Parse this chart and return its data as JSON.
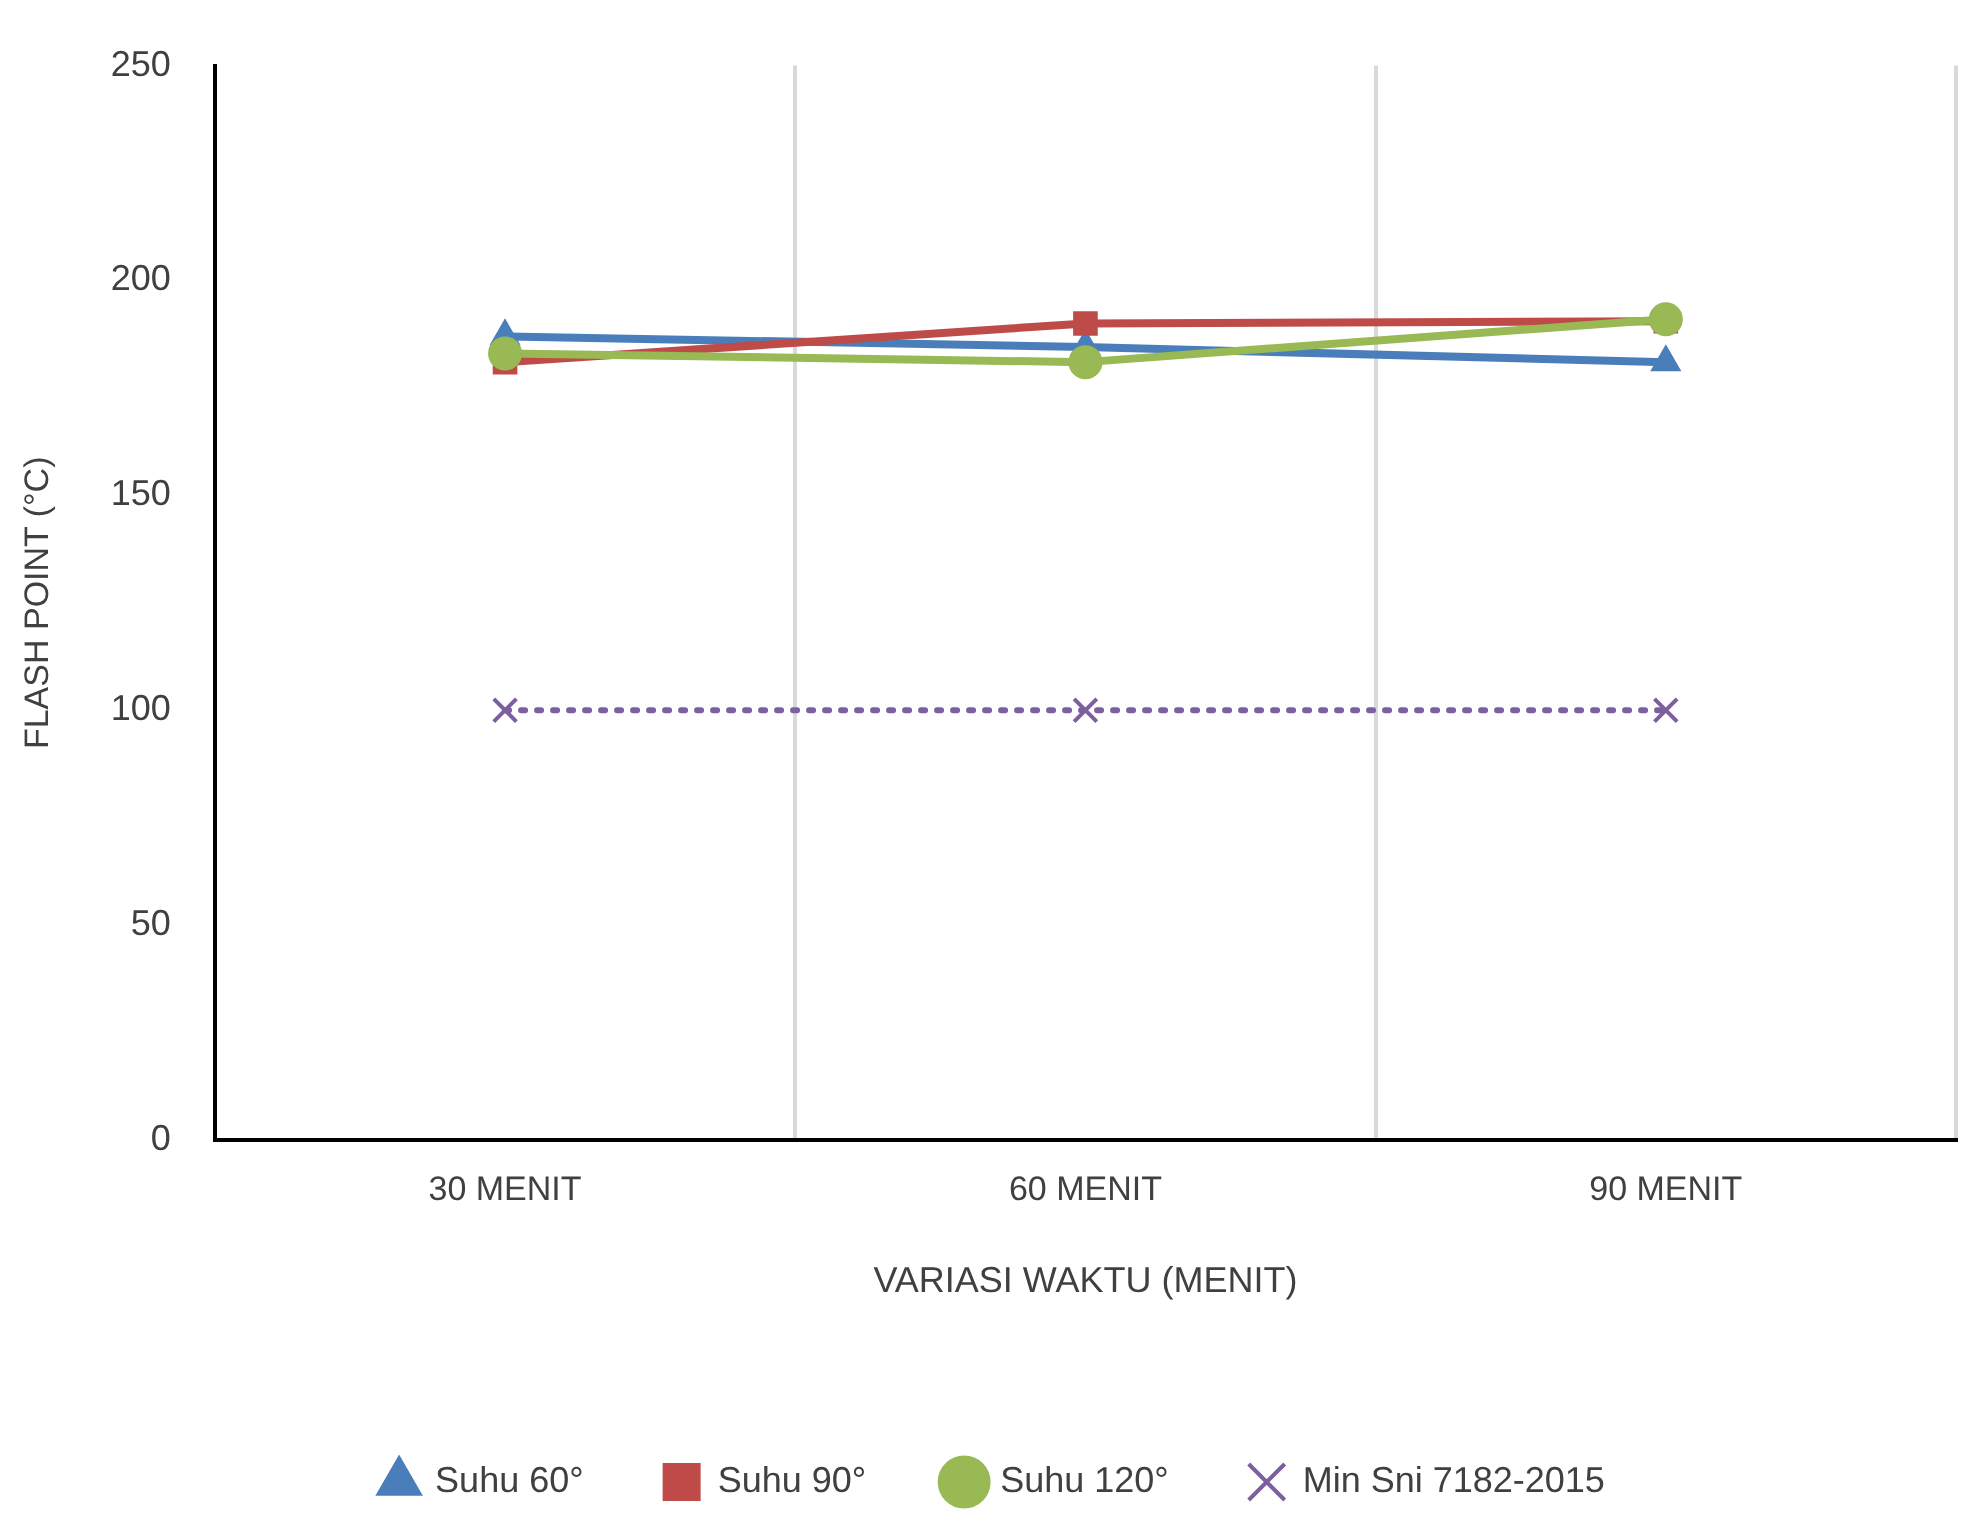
{
  "chart_data": {
    "type": "line",
    "xlabel": "VARIASI WAKTU (MENIT)",
    "ylabel": "FLASH POINT (°C)",
    "categories": [
      "30 MENIT",
      "60 MENIT",
      "90 MENIT"
    ],
    "series": [
      {
        "name": "Suhu 60°",
        "color": "#4a7ebb",
        "values": [
          187,
          184.5,
          181
        ],
        "marker": "triangle",
        "line_style": "solid"
      },
      {
        "name": "Suhu 90°",
        "color": "#be4b48",
        "values": [
          181,
          190,
          190.5
        ],
        "marker": "square",
        "line_style": "solid"
      },
      {
        "name": "Suhu 120°",
        "color": "#98b954",
        "values": [
          183,
          181,
          191
        ],
        "marker": "circle",
        "line_style": "solid"
      },
      {
        "name": "Min Sni 7182-2015",
        "color": "#7d5fa0",
        "values": [
          100,
          100,
          100
        ],
        "marker": "cross",
        "line_style": "dotted"
      }
    ],
    "ylim": [
      0,
      250
    ],
    "yticks": [
      0,
      50,
      100,
      150,
      200,
      250
    ],
    "grid": "x",
    "legend": "bottom"
  }
}
